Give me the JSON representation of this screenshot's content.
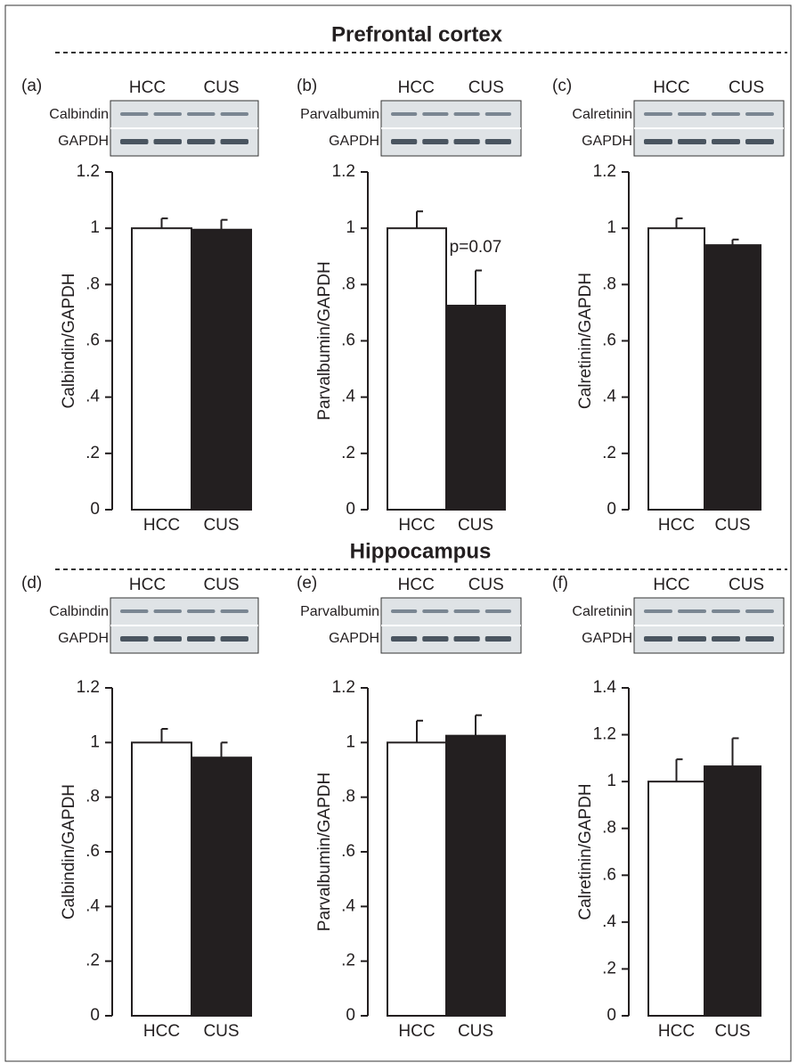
{
  "sections": [
    {
      "title": "Prefrontal cortex"
    },
    {
      "title": "Hippocampus"
    }
  ],
  "chart_data": [
    {
      "type": "bar",
      "panel": "(a)",
      "blot_header": [
        "HCC",
        "CUS"
      ],
      "blot_labels": [
        "Calbindin",
        "GAPDH"
      ],
      "y_label": "Calbindin/GAPDH",
      "categories": [
        "HCC",
        "CUS"
      ],
      "values": [
        1.0,
        0.995
      ],
      "errors": [
        0.035,
        0.035
      ],
      "colors": [
        "#ffffff",
        "#231f20"
      ],
      "ylim": [
        0,
        1.2
      ],
      "yticks": [
        0,
        {
          "value": 0.2,
          "label": ".2"
        },
        {
          "value": 0.4,
          "label": ".4"
        },
        {
          "value": 0.6,
          "label": ".6"
        },
        {
          "value": 0.8,
          "label": ".8"
        },
        1,
        1.2
      ]
    },
    {
      "type": "bar",
      "panel": "(b)",
      "blot_header": [
        "HCC",
        "CUS"
      ],
      "blot_labels": [
        "Parvalbumin",
        "GAPDH"
      ],
      "y_label": "Parvalbumin/GAPDH",
      "categories": [
        "HCC",
        "CUS"
      ],
      "values": [
        1.0,
        0.725
      ],
      "errors": [
        0.06,
        0.125
      ],
      "colors": [
        "#ffffff",
        "#231f20"
      ],
      "annotation": "p=0.07",
      "ylim": [
        0,
        1.2
      ],
      "yticks": [
        0,
        {
          "value": 0.2,
          "label": ".2"
        },
        {
          "value": 0.4,
          "label": ".4"
        },
        {
          "value": 0.6,
          "label": ".6"
        },
        {
          "value": 0.8,
          "label": ".8"
        },
        1,
        1.2
      ]
    },
    {
      "type": "bar",
      "panel": "(c)",
      "blot_header": [
        "HCC",
        "CUS"
      ],
      "blot_labels": [
        "Calretinin",
        "GAPDH"
      ],
      "y_label": "Calretinin/GAPDH",
      "categories": [
        "HCC",
        "CUS"
      ],
      "values": [
        1.0,
        0.94
      ],
      "errors": [
        0.035,
        0.02
      ],
      "colors": [
        "#ffffff",
        "#231f20"
      ],
      "ylim": [
        0,
        1.2
      ],
      "yticks": [
        0,
        {
          "value": 0.2,
          "label": ".2"
        },
        {
          "value": 0.4,
          "label": ".4"
        },
        {
          "value": 0.6,
          "label": ".6"
        },
        {
          "value": 0.8,
          "label": ".8"
        },
        1,
        1.2
      ]
    },
    {
      "type": "bar",
      "panel": "(d)",
      "blot_header": [
        "HCC",
        "CUS"
      ],
      "blot_labels": [
        "Calbindin",
        "GAPDH"
      ],
      "y_label": "Calbindin/GAPDH",
      "categories": [
        "HCC",
        "CUS"
      ],
      "values": [
        1.0,
        0.945
      ],
      "errors": [
        0.05,
        0.055
      ],
      "colors": [
        "#ffffff",
        "#231f20"
      ],
      "ylim": [
        0,
        1.2
      ],
      "yticks": [
        0,
        {
          "value": 0.2,
          "label": ".2"
        },
        {
          "value": 0.4,
          "label": ".4"
        },
        {
          "value": 0.6,
          "label": ".6"
        },
        {
          "value": 0.8,
          "label": ".8"
        },
        1,
        1.2
      ]
    },
    {
      "type": "bar",
      "panel": "(e)",
      "blot_header": [
        "HCC",
        "CUS"
      ],
      "blot_labels": [
        "Parvalbumin",
        "GAPDH"
      ],
      "y_label": "Parvalbumin/GAPDH",
      "categories": [
        "HCC",
        "CUS"
      ],
      "values": [
        1.0,
        1.025
      ],
      "errors": [
        0.08,
        0.075
      ],
      "colors": [
        "#ffffff",
        "#231f20"
      ],
      "ylim": [
        0,
        1.2
      ],
      "yticks": [
        0,
        {
          "value": 0.2,
          "label": ".2"
        },
        {
          "value": 0.4,
          "label": ".4"
        },
        {
          "value": 0.6,
          "label": ".6"
        },
        {
          "value": 0.8,
          "label": ".8"
        },
        1,
        1.2
      ]
    },
    {
      "type": "bar",
      "panel": "(f)",
      "blot_header": [
        "HCC",
        "CUS"
      ],
      "blot_labels": [
        "Calretinin",
        "GAPDH"
      ],
      "y_label": "Calretinin/GAPDH",
      "categories": [
        "HCC",
        "CUS"
      ],
      "values": [
        1.0,
        1.065
      ],
      "errors": [
        0.095,
        0.12
      ],
      "colors": [
        "#ffffff",
        "#231f20"
      ],
      "ylim": [
        0,
        1.4
      ],
      "yticks": [
        0,
        {
          "value": 0.2,
          "label": ".2"
        },
        {
          "value": 0.4,
          "label": ".4"
        },
        {
          "value": 0.6,
          "label": ".6"
        },
        {
          "value": 0.8,
          "label": ".8"
        },
        1,
        1.2,
        1.4
      ]
    }
  ]
}
